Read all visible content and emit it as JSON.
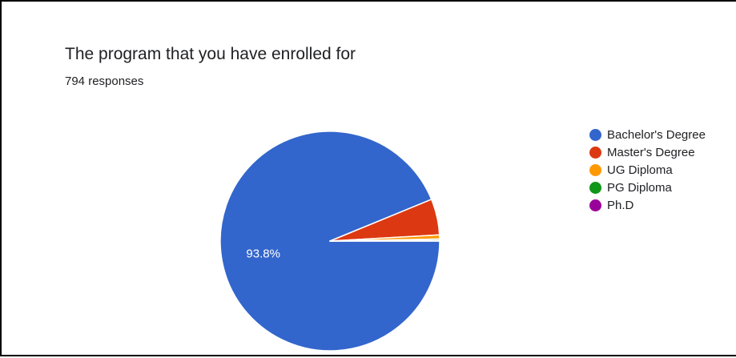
{
  "chart_data": {
    "type": "pie",
    "title": "The program that you have enrolled for",
    "subtitle": "794 responses",
    "slices": [
      {
        "label": "Bachelor's Degree",
        "value": 93.8,
        "color": "#3366cc",
        "data_label": "93.8%"
      },
      {
        "label": "Master's Degree",
        "value": 5.3,
        "color": "#dc3912",
        "data_label": ""
      },
      {
        "label": "UG Diploma",
        "value": 0.6,
        "color": "#ff9900",
        "data_label": ""
      },
      {
        "label": "PG Diploma",
        "value": 0.2,
        "color": "#109618",
        "data_label": ""
      },
      {
        "label": "Ph.D",
        "value": 0.1,
        "color": "#990099",
        "data_label": ""
      }
    ],
    "legend_position": "right"
  }
}
